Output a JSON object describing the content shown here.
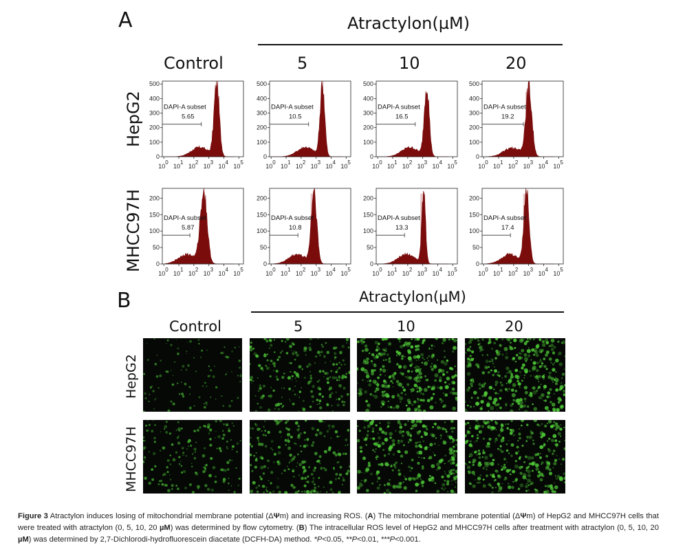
{
  "panel_a_label": "A",
  "panel_b_label": "B",
  "treatment_header": "Atractylon(µM)",
  "column_headers": [
    "Control",
    "5",
    "10",
    "20"
  ],
  "row_labels": [
    "HepG2",
    "MHCC97H"
  ],
  "caption": {
    "figure_label": "Figure 3",
    "text_1": " Atractylon induces losing of mitochondrial membrane potential (Δ",
    "psi_1": "Ψ",
    "text_2": "m) and increasing ROS. (",
    "a_1": "A",
    "text_3": ") The mitochondrial membrane potential (Δ",
    "psi_2": "Ψ",
    "text_4": "m) of HepG2 and MHCC97H cells that were treated with atractylon (0, 5, 10, 20 ",
    "mu_1": "µM",
    "text_5": ") was determined by flow cytometry. (",
    "b_1": "B",
    "text_6": ") The intracellular ROS level of HepG2 and MHCC97H cells after treatment with atractylon (0, 5, 10, 20 ",
    "mu_2": "µM",
    "text_7": ") was determined by 2,7-Dichlorodi-hydrofluorescein diacetate (DCFH-DA) method. ",
    "sig_1": "*P",
    "text_8": "<0.05, ",
    "sig_2": "**P",
    "text_9": "<0.01, ",
    "sig_3": "***P",
    "text_10": "<0.001."
  },
  "colors": {
    "histogram": "#7a0c0c",
    "gate_fill": "#e9c9c9",
    "fluorescence": "#53d43a",
    "micro_bg": "#050805"
  },
  "chart_data": [
    {
      "type": "histogram",
      "cell_line": "HepG2",
      "treatment": "Control",
      "gate_label": "DAPI-A subset",
      "gate_value": "5.65",
      "yticks": [
        "0",
        "100",
        "200",
        "300",
        "400",
        "500"
      ],
      "ylim": [
        0,
        520
      ],
      "xtick_labels": [
        "10",
        "0",
        "10",
        "1",
        "10",
        "2",
        "10",
        "3",
        "10",
        "4",
        "10",
        "5"
      ],
      "peak_log_x": 3.55,
      "peak_count": 500,
      "shoulder": "high-to-low"
    },
    {
      "type": "histogram",
      "cell_line": "HepG2",
      "treatment": "5",
      "gate_label": "DAPI-A subset",
      "gate_value": "10.5",
      "yticks": [
        "0",
        "100",
        "200",
        "300",
        "400",
        "500"
      ],
      "ylim": [
        0,
        520
      ],
      "xtick_labels": [
        "10",
        "0",
        "10",
        "1",
        "10",
        "2",
        "10",
        "3",
        "10",
        "4",
        "10",
        "5"
      ],
      "peak_log_x": 3.45,
      "peak_count": 500
    },
    {
      "type": "histogram",
      "cell_line": "HepG2",
      "treatment": "10",
      "gate_label": "DAPI-A subset",
      "gate_value": "16.5",
      "yticks": [
        "0",
        "100",
        "200",
        "300",
        "400",
        "500"
      ],
      "ylim": [
        0,
        520
      ],
      "xtick_labels": [
        "10",
        "0",
        "10",
        "1",
        "10",
        "2",
        "10",
        "3",
        "10",
        "4",
        "10",
        "5"
      ],
      "peak_log_x": 3.3,
      "peak_count": 490
    },
    {
      "type": "histogram",
      "cell_line": "HepG2",
      "treatment": "20",
      "gate_label": "DAPI-A subset",
      "gate_value": "19.2",
      "yticks": [
        "0",
        "100",
        "200",
        "300",
        "400",
        "500"
      ],
      "ylim": [
        0,
        520
      ],
      "xtick_labels": [
        "10",
        "0",
        "10",
        "1",
        "10",
        "2",
        "10",
        "3",
        "10",
        "4",
        "10",
        "5"
      ],
      "peak_log_x": 3.05,
      "peak_count": 470
    },
    {
      "type": "histogram",
      "cell_line": "MHCC97H",
      "treatment": "Control",
      "gate_label": "DAPI-A subset",
      "gate_value": "5.87",
      "yticks": [
        "0",
        "50",
        "100",
        "150",
        "200"
      ],
      "ylim": [
        0,
        230
      ],
      "xtick_labels": [
        "10",
        "0",
        "10",
        "1",
        "10",
        "2",
        "10",
        "3",
        "10",
        "4",
        "10",
        "5"
      ],
      "peak_log_x": 2.7,
      "peak_count": 225
    },
    {
      "type": "histogram",
      "cell_line": "MHCC97H",
      "treatment": "5",
      "gate_label": "DAPI-A subset",
      "gate_value": "10.8",
      "yticks": [
        "0",
        "50",
        "100",
        "150",
        "200"
      ],
      "ylim": [
        0,
        230
      ],
      "xtick_labels": [
        "10",
        "0",
        "10",
        "1",
        "10",
        "2",
        "10",
        "3",
        "10",
        "4",
        "10",
        "5"
      ],
      "peak_log_x": 2.9,
      "peak_count": 225
    },
    {
      "type": "histogram",
      "cell_line": "MHCC97H",
      "treatment": "10",
      "gate_label": "DAPI-A subset",
      "gate_value": "13.3",
      "yticks": [
        "0",
        "50",
        "100",
        "150",
        "200"
      ],
      "ylim": [
        0,
        230
      ],
      "xtick_labels": [
        "10",
        "0",
        "10",
        "1",
        "10",
        "2",
        "10",
        "3",
        "10",
        "4",
        "10",
        "5"
      ],
      "peak_log_x": 3.1,
      "peak_count": 225
    },
    {
      "type": "histogram",
      "cell_line": "MHCC97H",
      "treatment": "20",
      "gate_label": "DAPI-A subset",
      "gate_value": "17.4",
      "yticks": [
        "0",
        "50",
        "100",
        "150",
        "200"
      ],
      "ylim": [
        0,
        230
      ],
      "xtick_labels": [
        "10",
        "0",
        "10",
        "1",
        "10",
        "2",
        "10",
        "3",
        "10",
        "4",
        "10",
        "5"
      ],
      "peak_log_x": 2.9,
      "peak_count": 225
    }
  ],
  "fluorescence_panels": [
    {
      "cell_line": "HepG2",
      "treatment": "Control",
      "density": 0.15
    },
    {
      "cell_line": "HepG2",
      "treatment": "5",
      "density": 0.45
    },
    {
      "cell_line": "HepG2",
      "treatment": "10",
      "density": 0.7
    },
    {
      "cell_line": "HepG2",
      "treatment": "20",
      "density": 0.75
    },
    {
      "cell_line": "MHCC97H",
      "treatment": "Control",
      "density": 0.3
    },
    {
      "cell_line": "MHCC97H",
      "treatment": "5",
      "density": 0.45
    },
    {
      "cell_line": "MHCC97H",
      "treatment": "10",
      "density": 0.65
    },
    {
      "cell_line": "MHCC97H",
      "treatment": "20",
      "density": 0.7
    }
  ]
}
